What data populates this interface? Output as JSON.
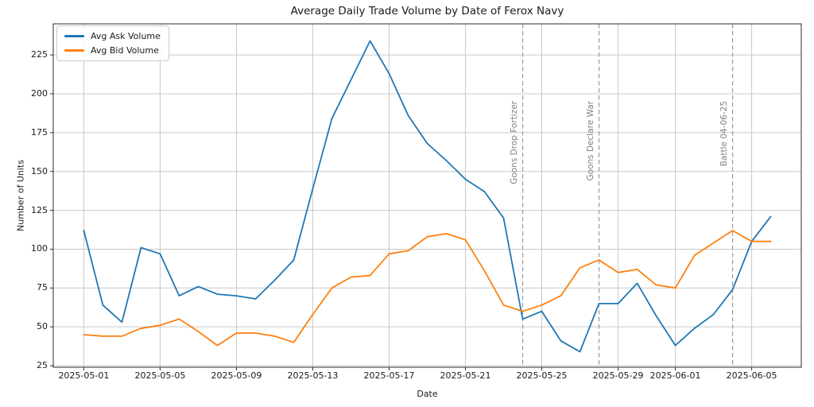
{
  "chart_data": {
    "type": "line",
    "title": "Average Daily Trade Volume by Date of Ferox Navy",
    "xlabel": "Date",
    "ylabel": "Number of Units",
    "grid": true,
    "legend_position": "upper left",
    "x": [
      "2025-05-01",
      "2025-05-02",
      "2025-05-03",
      "2025-05-04",
      "2025-05-05",
      "2025-05-06",
      "2025-05-07",
      "2025-05-08",
      "2025-05-09",
      "2025-05-10",
      "2025-05-11",
      "2025-05-12",
      "2025-05-13",
      "2025-05-14",
      "2025-05-15",
      "2025-05-16",
      "2025-05-17",
      "2025-05-18",
      "2025-05-19",
      "2025-05-20",
      "2025-05-21",
      "2025-05-22",
      "2025-05-23",
      "2025-05-24",
      "2025-05-25",
      "2025-05-26",
      "2025-05-27",
      "2025-05-28",
      "2025-05-29",
      "2025-05-30",
      "2025-05-31",
      "2025-06-01",
      "2025-06-02",
      "2025-06-03",
      "2025-06-04",
      "2025-06-05",
      "2025-06-06"
    ],
    "series": [
      {
        "name": "Avg Ask Volume",
        "color": "#1f77b4",
        "values": [
          112,
          64,
          53,
          101,
          97,
          70,
          76,
          71,
          70,
          68,
          80,
          93,
          139,
          184,
          209,
          234,
          213,
          186,
          168,
          157,
          145,
          137,
          120,
          55,
          60,
          41,
          34,
          65,
          65,
          78,
          57,
          38,
          49,
          58,
          74,
          105,
          121
        ]
      },
      {
        "name": "Avg Bid Volume",
        "color": "#ff7f0e",
        "values": [
          45,
          44,
          44,
          49,
          51,
          55,
          47,
          38,
          46,
          46,
          44,
          40,
          58,
          75,
          82,
          83,
          97,
          99,
          108,
          110,
          106,
          86,
          64,
          60,
          64,
          70,
          88,
          93,
          85,
          87,
          77,
          75,
          96,
          104,
          112,
          105,
          105
        ]
      }
    ],
    "x_tick_labels": [
      "2025-05-01",
      "2025-05-05",
      "2025-05-09",
      "2025-05-13",
      "2025-05-17",
      "2025-05-21",
      "2025-05-25",
      "2025-05-29",
      "2025-06-01",
      "2025-06-05"
    ],
    "y_ticks": [
      25,
      50,
      75,
      100,
      125,
      150,
      175,
      200,
      225
    ],
    "ylim": [
      24,
      245
    ],
    "xlim_day_offsets": [
      -1.6,
      37.6
    ],
    "events": [
      {
        "date": "2025-05-24",
        "label": "Goons Drop Fortizer"
      },
      {
        "date": "2025-05-28",
        "label": "Goons Declare War"
      },
      {
        "date": "2025-06-04",
        "label": "Battle 04-06-25"
      }
    ],
    "colors": {
      "grid": "#c8c8c8",
      "spine": "#2b2b2b",
      "event_line": "#9a9a9a",
      "event_text": "#808080"
    }
  }
}
